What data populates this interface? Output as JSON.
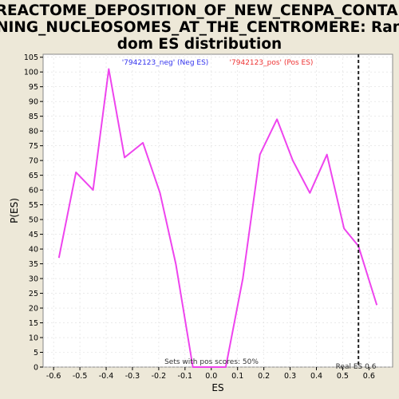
{
  "chart_data": {
    "type": "line",
    "title_lines": [
      "REACTOME_DEPOSITION_OF_NEW_CENPA_CONTAI",
      "NING_NUCLEOSOMES_AT_THE_CENTROMERE: Ran",
      "dom ES distribution"
    ],
    "xlabel": "ES",
    "ylabel": "P(ES)",
    "xlim": [
      -0.64,
      0.69
    ],
    "ylim": [
      0,
      106
    ],
    "x_ticks": [
      -0.6,
      -0.5,
      -0.4,
      -0.3,
      -0.2,
      -0.1,
      0.0,
      0.1,
      0.2,
      0.3,
      0.4,
      0.5,
      0.6
    ],
    "x_tick_labels": [
      "-0.6",
      "-0.5",
      "-0.4",
      "-0.3",
      "-0.2",
      "-0.1",
      "0.0",
      "0.1",
      "0.2",
      "0.3",
      "0.4",
      "0.5",
      "0.6"
    ],
    "y_ticks": [
      0,
      5,
      10,
      15,
      20,
      25,
      30,
      35,
      40,
      45,
      50,
      55,
      60,
      65,
      70,
      75,
      80,
      85,
      90,
      95,
      100,
      105
    ],
    "y_tick_labels": [
      "0",
      "5",
      "10",
      "15",
      "20",
      "25",
      "30",
      "35",
      "40",
      "45",
      "50",
      "55",
      "60",
      "65",
      "70",
      "75",
      "80",
      "85",
      "90",
      "95",
      "100",
      "105"
    ],
    "grid": true,
    "series": [
      {
        "color": "#ee44ee",
        "x": [
          -0.58,
          -0.515,
          -0.45,
          -0.39,
          -0.33,
          -0.26,
          -0.195,
          -0.135,
          -0.07,
          -0.01,
          0.055,
          0.12,
          0.185,
          0.25,
          0.31,
          0.375,
          0.44,
          0.505,
          0.56,
          0.63
        ],
        "y": [
          37,
          66,
          60,
          101,
          71,
          76,
          59,
          35,
          0,
          0,
          0,
          30,
          72,
          84,
          70,
          59,
          72,
          47,
          41,
          21
        ]
      }
    ],
    "legend": {
      "placement": "top",
      "neg_label": "'7942123_neg' (Neg ES)",
      "neg_color": "#3333ee",
      "pos_label": "'7942123_pos' (Pos ES)",
      "pos_color": "#ee3333"
    },
    "real_es": {
      "value": 0.56,
      "label": "Real ES 0.6"
    },
    "annotation": "Sets with pos scores: 50%"
  }
}
